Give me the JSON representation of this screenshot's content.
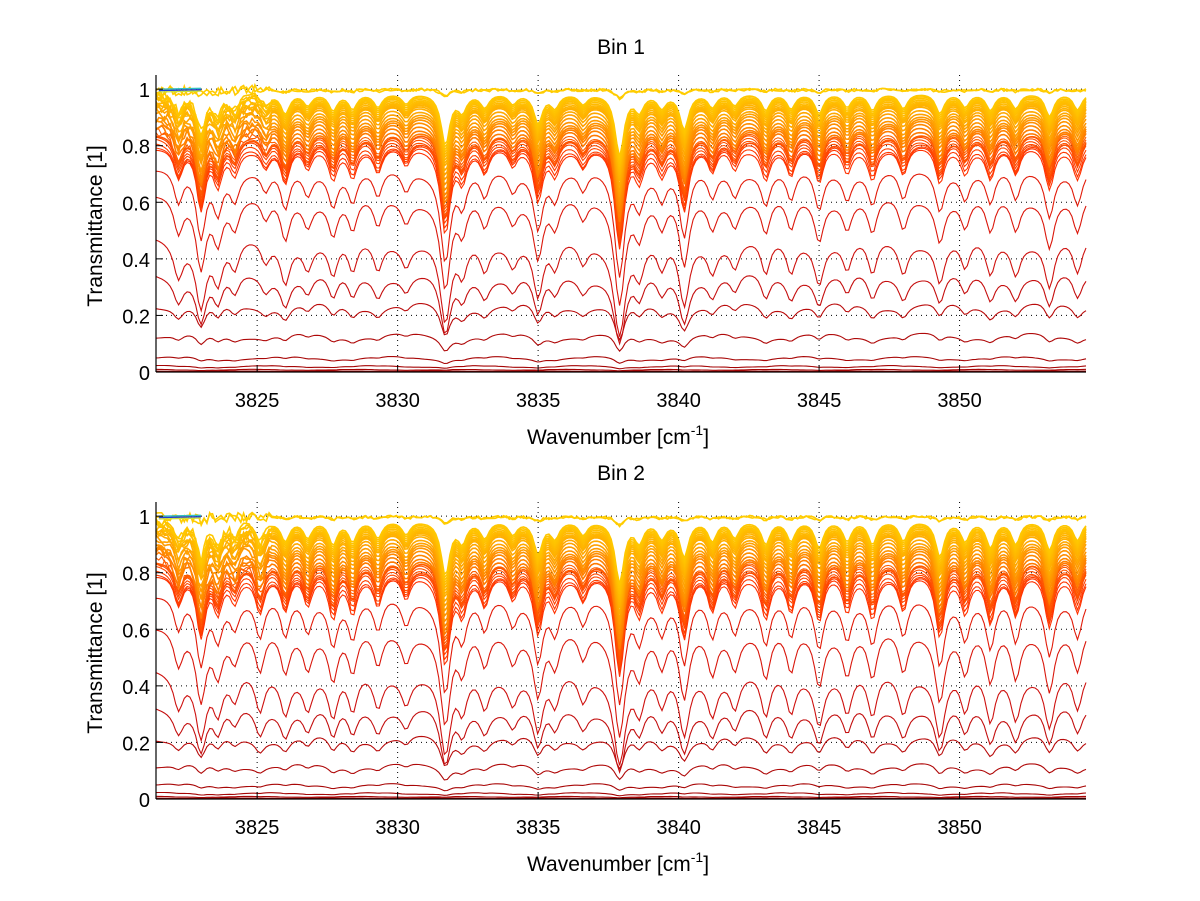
{
  "chart_data": [
    {
      "type": "line",
      "title": "Bin 1",
      "xlabel": "Wavenumber [cm",
      "xlabel_superscript": "-1",
      "xlabel_suffix": "]",
      "ylabel": "Transmittance [1]",
      "xlim": [
        3821.4,
        3854.5
      ],
      "ylim": [
        0,
        1.05
      ],
      "xticks": [
        3825,
        3830,
        3835,
        3840,
        3845,
        3850
      ],
      "xtick_labels": [
        "3825",
        "3830",
        "3835",
        "3840",
        "3845",
        "3850"
      ],
      "yticks": [
        0,
        0.2,
        0.4,
        0.6,
        0.8,
        1
      ],
      "ytick_labels": [
        "0",
        "0.2",
        "0.4",
        "0.6",
        "0.8",
        "1"
      ],
      "grid": true,
      "legend": "none",
      "series_count": 40,
      "series_baseline_transmittance": [
        1.0,
        0.995,
        0.99,
        0.985,
        0.98,
        0.975,
        0.97,
        0.965,
        0.96,
        0.955,
        0.95,
        0.94,
        0.93,
        0.92,
        0.91,
        0.9,
        0.89,
        0.88,
        0.87,
        0.86,
        0.855,
        0.85,
        0.845,
        0.84,
        0.835,
        0.83,
        0.82,
        0.81,
        0.8,
        0.72,
        0.62,
        0.47,
        0.35,
        0.24,
        0.13,
        0.05,
        0.02,
        0.008,
        0.003,
        0.001
      ],
      "absorption_lines_cm-1": [
        3822.2,
        3823.0,
        3823.6,
        3824.2,
        3825.3,
        3826.0,
        3826.8,
        3827.7,
        3828.4,
        3829.3,
        3830.3,
        3831.7,
        3832.3,
        3833.1,
        3834.1,
        3835.0,
        3835.6,
        3836.6,
        3837.9,
        3838.6,
        3839.4,
        3840.2,
        3841.2,
        3842.0,
        3843.1,
        3844.0,
        3845.0,
        3846.0,
        3846.9,
        3848.0,
        3849.3,
        3850.2,
        3851.1,
        3852.0,
        3853.2,
        3854.2
      ],
      "absorption_line_strengths": [
        0.1,
        0.22,
        0.12,
        0.08,
        0.06,
        0.12,
        0.07,
        0.1,
        0.09,
        0.08,
        0.06,
        0.32,
        0.1,
        0.08,
        0.06,
        0.18,
        0.08,
        0.06,
        0.4,
        0.1,
        0.08,
        0.22,
        0.08,
        0.07,
        0.1,
        0.09,
        0.12,
        0.08,
        0.1,
        0.09,
        0.12,
        0.08,
        0.1,
        0.09,
        0.14,
        0.1
      ],
      "color_scale": [
        "#8b0000",
        "#cc1010",
        "#ff2a00",
        "#ff6000",
        "#ff9a00",
        "#ffd000",
        "#c8e040",
        "#30c0c0",
        "#2040d0"
      ]
    },
    {
      "type": "line",
      "title": "Bin 2",
      "xlabel": "Wavenumber [cm",
      "xlabel_superscript": "-1",
      "xlabel_suffix": "]",
      "ylabel": "Transmittance [1]",
      "xlim": [
        3821.4,
        3854.5
      ],
      "ylim": [
        0,
        1.05
      ],
      "xticks": [
        3825,
        3830,
        3835,
        3840,
        3845,
        3850
      ],
      "xtick_labels": [
        "3825",
        "3830",
        "3835",
        "3840",
        "3845",
        "3850"
      ],
      "yticks": [
        0,
        0.2,
        0.4,
        0.6,
        0.8,
        1
      ],
      "ytick_labels": [
        "0",
        "0.2",
        "0.4",
        "0.6",
        "0.8",
        "1"
      ],
      "grid": true,
      "legend": "none",
      "series_count": 40,
      "series_baseline_transmittance": [
        1.0,
        0.995,
        0.99,
        0.985,
        0.98,
        0.975,
        0.97,
        0.965,
        0.96,
        0.955,
        0.95,
        0.94,
        0.93,
        0.92,
        0.91,
        0.9,
        0.89,
        0.88,
        0.87,
        0.86,
        0.855,
        0.85,
        0.845,
        0.84,
        0.835,
        0.83,
        0.82,
        0.81,
        0.8,
        0.72,
        0.6,
        0.45,
        0.33,
        0.22,
        0.12,
        0.05,
        0.02,
        0.008,
        0.003,
        0.001
      ],
      "absorption_lines_cm-1": [
        3822.2,
        3823.0,
        3823.6,
        3824.2,
        3825.1,
        3826.0,
        3826.8,
        3827.7,
        3828.4,
        3829.3,
        3830.3,
        3831.7,
        3832.3,
        3833.1,
        3834.1,
        3835.0,
        3835.6,
        3836.6,
        3837.9,
        3838.6,
        3839.4,
        3840.2,
        3841.2,
        3842.0,
        3843.1,
        3844.0,
        3845.0,
        3846.0,
        3846.9,
        3848.0,
        3849.3,
        3850.2,
        3851.1,
        3852.0,
        3853.2,
        3854.2
      ],
      "absorption_line_strengths": [
        0.1,
        0.22,
        0.12,
        0.08,
        0.12,
        0.12,
        0.1,
        0.14,
        0.12,
        0.1,
        0.08,
        0.34,
        0.12,
        0.1,
        0.08,
        0.2,
        0.1,
        0.08,
        0.4,
        0.12,
        0.1,
        0.22,
        0.12,
        0.1,
        0.14,
        0.12,
        0.16,
        0.12,
        0.14,
        0.12,
        0.22,
        0.12,
        0.16,
        0.14,
        0.18,
        0.12
      ],
      "color_scale": [
        "#8b0000",
        "#cc1010",
        "#ff2a00",
        "#ff6000",
        "#ff9a00",
        "#ffd000",
        "#c8e040",
        "#30c0c0",
        "#2040d0"
      ]
    }
  ]
}
